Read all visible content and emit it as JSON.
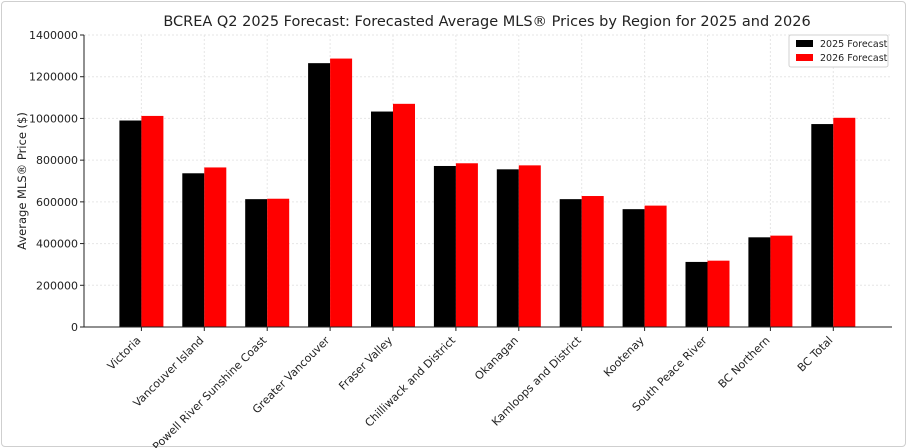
{
  "chart_data": {
    "type": "bar",
    "title": "BCREA Q2 2025 Forecast: Forecasted Average MLS® Prices by Region for 2025 and 2026",
    "xlabel": "",
    "ylabel": "Average MLS® Price ($)",
    "ylim": [
      0,
      1400000
    ],
    "yticks": [
      0,
      200000,
      400000,
      600000,
      800000,
      1000000,
      1200000,
      1400000
    ],
    "ytick_labels": [
      "0",
      "200000",
      "400000",
      "600000",
      "800000",
      "1000000",
      "1200000",
      "1400000"
    ],
    "grid": true,
    "legend_position": "top-right",
    "categories": [
      "Victoria",
      "Vancouver Island",
      "Powell River Sunshine Coast",
      "Greater Vancouver",
      "Fraser Valley",
      "Chilliwack and District",
      "Okanagan",
      "Kamloops and District",
      "Kootenay",
      "South Peace River",
      "BC Northern",
      "BC Total"
    ],
    "series": [
      {
        "name": "2025 Forecast",
        "color": "#000000",
        "values": [
          990000,
          737000,
          613000,
          1265000,
          1033000,
          772000,
          756000,
          613000,
          565000,
          312000,
          430000,
          973000
        ]
      },
      {
        "name": "2026 Forecast",
        "color": "#ff0000",
        "values": [
          1012000,
          765000,
          615000,
          1287000,
          1070000,
          785000,
          775000,
          628000,
          582000,
          318000,
          438000,
          1003000
        ]
      }
    ]
  }
}
